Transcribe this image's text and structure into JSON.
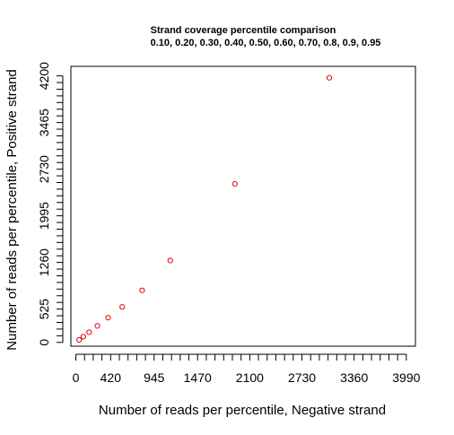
{
  "chart_data": {
    "type": "scatter",
    "title": "Strand coverage percentile comparison",
    "subtitle": "0.10, 0.20, 0.30, 0.40, 0.50, 0.60, 0.70, 0.8, 0.9, 0.95",
    "xlabel": "Number of reads per percentile, Negative strand",
    "ylabel": "Number of reads per percentile, Positive strand",
    "xlim": [
      -60,
      4100
    ],
    "ylim": [
      -60,
      4350
    ],
    "x_ticks": [
      0,
      420,
      945,
      1470,
      2100,
      2730,
      3360,
      3990
    ],
    "y_ticks": [
      0,
      525,
      1260,
      1995,
      2730,
      3465,
      4200
    ],
    "x_minor_step": 105,
    "y_minor_step": 105,
    "point_color": "#e0000b",
    "grid": false,
    "points": [
      {
        "x": 40,
        "y": 40
      },
      {
        "x": 90,
        "y": 90
      },
      {
        "x": 160,
        "y": 160
      },
      {
        "x": 260,
        "y": 260
      },
      {
        "x": 390,
        "y": 390
      },
      {
        "x": 560,
        "y": 560
      },
      {
        "x": 800,
        "y": 820
      },
      {
        "x": 1140,
        "y": 1290
      },
      {
        "x": 1920,
        "y": 2500
      },
      {
        "x": 3060,
        "y": 4170
      }
    ]
  }
}
